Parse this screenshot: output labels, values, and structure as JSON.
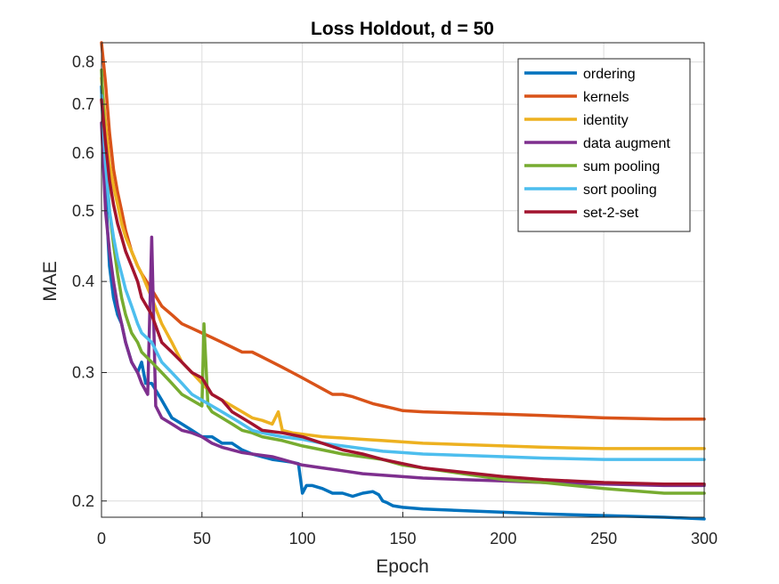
{
  "chart_data": {
    "type": "line",
    "title": "Loss Holdout, d = 50",
    "xlabel": "Epoch",
    "ylabel": "MAE",
    "xlim": [
      0,
      300
    ],
    "ylim": [
      0.19,
      0.85
    ],
    "yscale": "log",
    "grid": true,
    "legend_position": "top-right",
    "xticks": [
      0,
      50,
      100,
      150,
      200,
      250,
      300
    ],
    "yticks": [
      0.2,
      0.3,
      0.4,
      0.5,
      0.6,
      0.7,
      0.8
    ],
    "series": [
      {
        "name": "ordering",
        "color": "#0072BD",
        "x": [
          0,
          2,
          4,
          6,
          8,
          10,
          12,
          15,
          18,
          20,
          22,
          25,
          30,
          35,
          40,
          45,
          50,
          55,
          60,
          65,
          70,
          75,
          80,
          85,
          90,
          95,
          98,
          100,
          102,
          105,
          110,
          115,
          120,
          125,
          130,
          135,
          138,
          140,
          142,
          145,
          150,
          160,
          180,
          200,
          220,
          250,
          280,
          300
        ],
        "values": [
          0.74,
          0.53,
          0.42,
          0.38,
          0.36,
          0.35,
          0.33,
          0.31,
          0.3,
          0.31,
          0.29,
          0.29,
          0.275,
          0.26,
          0.255,
          0.25,
          0.245,
          0.245,
          0.24,
          0.24,
          0.235,
          0.232,
          0.23,
          0.228,
          0.227,
          0.226,
          0.225,
          0.205,
          0.21,
          0.21,
          0.208,
          0.205,
          0.205,
          0.203,
          0.205,
          0.206,
          0.204,
          0.2,
          0.199,
          0.197,
          0.196,
          0.195,
          0.194,
          0.193,
          0.192,
          0.191,
          0.19,
          0.189
        ]
      },
      {
        "name": "kernels",
        "color": "#D95319",
        "x": [
          0,
          2,
          4,
          6,
          8,
          10,
          12,
          15,
          18,
          20,
          25,
          30,
          35,
          40,
          45,
          50,
          55,
          60,
          65,
          70,
          75,
          80,
          85,
          90,
          95,
          100,
          105,
          110,
          115,
          120,
          125,
          130,
          135,
          140,
          145,
          150,
          160,
          180,
          200,
          220,
          250,
          280,
          300
        ],
        "values": [
          0.85,
          0.75,
          0.64,
          0.57,
          0.53,
          0.5,
          0.47,
          0.44,
          0.42,
          0.41,
          0.39,
          0.37,
          0.36,
          0.35,
          0.345,
          0.34,
          0.335,
          0.33,
          0.325,
          0.32,
          0.32,
          0.315,
          0.31,
          0.305,
          0.3,
          0.295,
          0.29,
          0.285,
          0.28,
          0.28,
          0.278,
          0.275,
          0.272,
          0.27,
          0.268,
          0.266,
          0.265,
          0.264,
          0.263,
          0.262,
          0.26,
          0.259,
          0.259
        ]
      },
      {
        "name": "identity",
        "color": "#EDB120",
        "x": [
          0,
          2,
          4,
          6,
          8,
          10,
          12,
          15,
          18,
          20,
          25,
          30,
          35,
          40,
          45,
          50,
          55,
          60,
          65,
          70,
          75,
          80,
          85,
          88,
          90,
          95,
          100,
          110,
          120,
          130,
          140,
          150,
          160,
          180,
          200,
          220,
          250,
          280,
          300
        ],
        "values": [
          0.76,
          0.66,
          0.58,
          0.54,
          0.51,
          0.48,
          0.46,
          0.44,
          0.42,
          0.41,
          0.38,
          0.35,
          0.33,
          0.31,
          0.3,
          0.29,
          0.28,
          0.275,
          0.27,
          0.265,
          0.26,
          0.258,
          0.255,
          0.265,
          0.25,
          0.248,
          0.247,
          0.245,
          0.244,
          0.243,
          0.242,
          0.241,
          0.24,
          0.239,
          0.238,
          0.237,
          0.236,
          0.236,
          0.236
        ]
      },
      {
        "name": "data augment",
        "color": "#7E2F8E",
        "x": [
          0,
          2,
          4,
          6,
          8,
          10,
          12,
          15,
          18,
          20,
          23,
          25,
          27,
          30,
          35,
          40,
          45,
          50,
          55,
          60,
          65,
          70,
          75,
          80,
          85,
          90,
          95,
          100,
          110,
          120,
          130,
          140,
          150,
          160,
          180,
          200,
          220,
          250,
          280,
          300
        ],
        "values": [
          0.66,
          0.5,
          0.44,
          0.4,
          0.37,
          0.35,
          0.33,
          0.31,
          0.3,
          0.29,
          0.28,
          0.46,
          0.27,
          0.26,
          0.255,
          0.25,
          0.248,
          0.245,
          0.24,
          0.237,
          0.235,
          0.233,
          0.232,
          0.231,
          0.23,
          0.228,
          0.226,
          0.224,
          0.222,
          0.22,
          0.218,
          0.217,
          0.216,
          0.215,
          0.214,
          0.213,
          0.212,
          0.211,
          0.21,
          0.21
        ]
      },
      {
        "name": "sum pooling",
        "color": "#77AC30",
        "x": [
          0,
          2,
          4,
          6,
          8,
          10,
          12,
          15,
          18,
          20,
          25,
          30,
          35,
          40,
          45,
          50,
          51,
          53,
          55,
          60,
          65,
          70,
          75,
          80,
          90,
          100,
          110,
          120,
          130,
          140,
          145,
          150,
          160,
          180,
          200,
          220,
          250,
          280,
          300
        ],
        "values": [
          0.78,
          0.6,
          0.5,
          0.45,
          0.41,
          0.38,
          0.36,
          0.34,
          0.33,
          0.32,
          0.31,
          0.3,
          0.29,
          0.28,
          0.275,
          0.27,
          0.35,
          0.27,
          0.265,
          0.26,
          0.255,
          0.25,
          0.248,
          0.245,
          0.242,
          0.238,
          0.235,
          0.232,
          0.23,
          0.228,
          0.226,
          0.224,
          0.222,
          0.218,
          0.214,
          0.212,
          0.208,
          0.205,
          0.205
        ]
      },
      {
        "name": "sort pooling",
        "color": "#4DBEEE",
        "x": [
          0,
          2,
          4,
          6,
          8,
          10,
          12,
          15,
          18,
          20,
          25,
          30,
          35,
          40,
          45,
          50,
          55,
          60,
          65,
          70,
          75,
          80,
          90,
          100,
          110,
          120,
          130,
          140,
          150,
          160,
          180,
          200,
          220,
          250,
          280,
          300
        ],
        "values": [
          0.72,
          0.58,
          0.5,
          0.46,
          0.43,
          0.41,
          0.39,
          0.37,
          0.35,
          0.34,
          0.33,
          0.31,
          0.3,
          0.29,
          0.28,
          0.275,
          0.27,
          0.265,
          0.26,
          0.255,
          0.25,
          0.248,
          0.245,
          0.243,
          0.24,
          0.238,
          0.236,
          0.234,
          0.233,
          0.232,
          0.231,
          0.23,
          0.229,
          0.228,
          0.228,
          0.228
        ]
      },
      {
        "name": "set-2-set",
        "color": "#A2142F",
        "x": [
          0,
          2,
          4,
          6,
          8,
          10,
          12,
          15,
          18,
          20,
          25,
          30,
          35,
          40,
          45,
          50,
          55,
          60,
          65,
          70,
          75,
          80,
          90,
          100,
          110,
          120,
          130,
          140,
          150,
          160,
          180,
          200,
          220,
          250,
          280,
          300
        ],
        "values": [
          0.71,
          0.62,
          0.55,
          0.51,
          0.48,
          0.46,
          0.44,
          0.42,
          0.4,
          0.38,
          0.36,
          0.33,
          0.32,
          0.31,
          0.3,
          0.295,
          0.28,
          0.275,
          0.265,
          0.26,
          0.255,
          0.25,
          0.248,
          0.245,
          0.24,
          0.235,
          0.232,
          0.228,
          0.225,
          0.222,
          0.219,
          0.216,
          0.214,
          0.212,
          0.211,
          0.211
        ]
      }
    ]
  }
}
